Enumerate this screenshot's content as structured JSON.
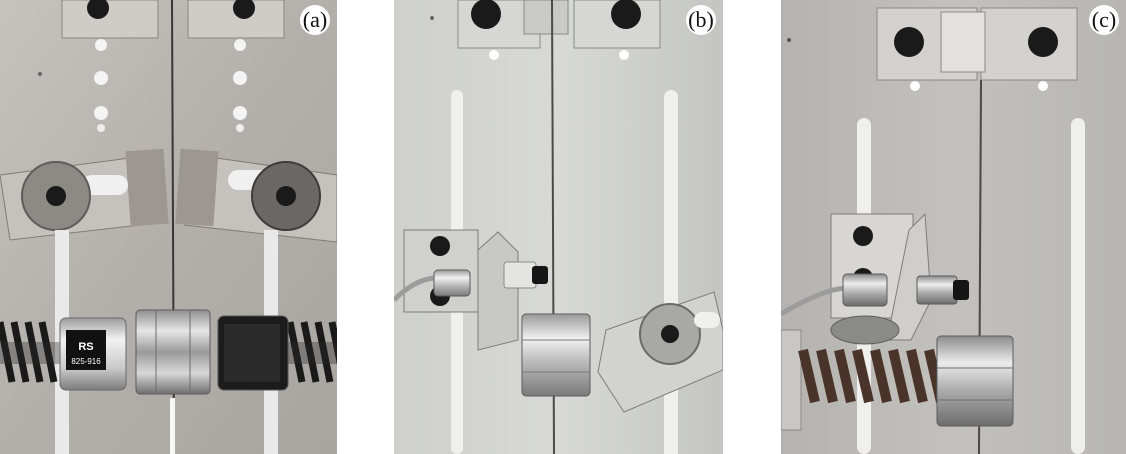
{
  "figure": {
    "panels": [
      {
        "label": "(a)",
        "background": "#b7b3af"
      },
      {
        "label": "(b)",
        "background": "#d3d4d2"
      },
      {
        "label": "(c)",
        "background": "#bdbcb8"
      }
    ],
    "coil_label_text": "825-916",
    "coil_logo_text": "RS"
  }
}
